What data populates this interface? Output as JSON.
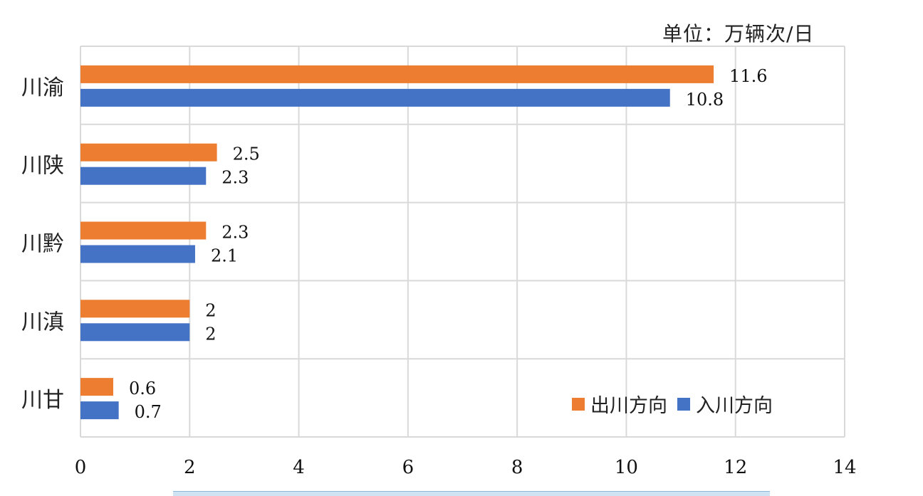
{
  "chart_data": {
    "type": "bar",
    "orientation": "horizontal",
    "unit_label": "单位：万辆次/日",
    "categories": [
      "川渝",
      "川陕",
      "川黔",
      "川滇",
      "川甘"
    ],
    "series": [
      {
        "name": "出川方向",
        "color": "#ED7D31",
        "values": [
          11.6,
          2.5,
          2.3,
          2,
          0.6
        ]
      },
      {
        "name": "入川方向",
        "color": "#4472C4",
        "values": [
          10.8,
          2.3,
          2.1,
          2,
          0.7
        ]
      }
    ],
    "data_labels": [
      [
        "11.6",
        "2.5",
        "2.3",
        "2",
        "0.6"
      ],
      [
        "10.8",
        "2.3",
        "2.1",
        "2",
        "0.7"
      ]
    ],
    "xlim": [
      0,
      14
    ],
    "xticks": [
      0,
      2,
      4,
      6,
      8,
      10,
      12,
      14
    ],
    "grid": true,
    "legend_position": "bottom-right"
  }
}
